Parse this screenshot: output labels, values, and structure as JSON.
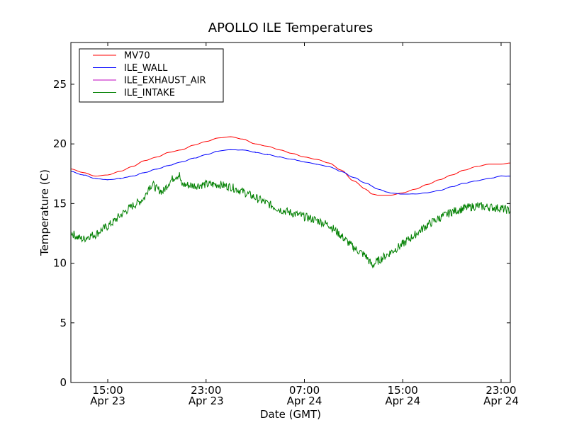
{
  "chart_data": {
    "type": "line",
    "title": "APOLLO ILE Temperatures",
    "xlabel": "Date (GMT)",
    "ylabel": "Temperature (C)",
    "x_unit": "hours on the date axis",
    "xlim": [
      "Apr 23 12:00",
      "Apr 24 23:45"
    ],
    "ylim": [
      0,
      28.5
    ],
    "y_ticks": [
      0,
      5,
      10,
      15,
      20,
      25
    ],
    "x_ticks": [
      {
        "time": "15:00",
        "date": "Apr 23",
        "at": "Apr 23 15:00"
      },
      {
        "time": "23:00",
        "date": "Apr 23",
        "at": "Apr 23 23:00"
      },
      {
        "time": "07:00",
        "date": "Apr 24",
        "at": "Apr 24 07:00"
      },
      {
        "time": "15:00",
        "date": "Apr 24",
        "at": "Apr 24 15:00"
      },
      {
        "time": "23:00",
        "date": "Apr 24",
        "at": "Apr 24 23:00"
      }
    ],
    "grid": false,
    "legend_position": "top-left",
    "series": [
      {
        "name": "MV70",
        "color": "#ff0000",
        "points": [
          [
            "Apr 23 12:00",
            17.9
          ],
          [
            "Apr 23 13:00",
            17.6
          ],
          [
            "Apr 23 14:00",
            17.3
          ],
          [
            "Apr 23 15:00",
            17.4
          ],
          [
            "Apr 23 16:00",
            17.7
          ],
          [
            "Apr 23 17:00",
            18.1
          ],
          [
            "Apr 23 18:00",
            18.6
          ],
          [
            "Apr 23 19:00",
            18.9
          ],
          [
            "Apr 23 20:00",
            19.3
          ],
          [
            "Apr 23 21:00",
            19.5
          ],
          [
            "Apr 23 22:00",
            19.9
          ],
          [
            "Apr 23 23:00",
            20.2
          ],
          [
            "Apr 24 00:00",
            20.5
          ],
          [
            "Apr 24 01:00",
            20.6
          ],
          [
            "Apr 24 02:00",
            20.4
          ],
          [
            "Apr 24 03:00",
            20.0
          ],
          [
            "Apr 24 04:00",
            19.8
          ],
          [
            "Apr 24 05:00",
            19.5
          ],
          [
            "Apr 24 06:00",
            19.2
          ],
          [
            "Apr 24 07:00",
            18.9
          ],
          [
            "Apr 24 08:00",
            18.7
          ],
          [
            "Apr 24 09:00",
            18.4
          ],
          [
            "Apr 24 10:00",
            17.8
          ],
          [
            "Apr 24 11:00",
            16.9
          ],
          [
            "Apr 24 12:00",
            16.2
          ],
          [
            "Apr 24 12:30",
            15.8
          ],
          [
            "Apr 24 13:00",
            15.7
          ],
          [
            "Apr 24 14:00",
            15.7
          ],
          [
            "Apr 24 15:00",
            15.9
          ],
          [
            "Apr 24 16:00",
            16.2
          ],
          [
            "Apr 24 17:00",
            16.6
          ],
          [
            "Apr 24 18:00",
            17.0
          ],
          [
            "Apr 24 19:00",
            17.4
          ],
          [
            "Apr 24 20:00",
            17.8
          ],
          [
            "Apr 24 21:00",
            18.1
          ],
          [
            "Apr 24 22:00",
            18.3
          ],
          [
            "Apr 24 23:00",
            18.3
          ],
          [
            "Apr 24 23:45",
            18.4
          ]
        ]
      },
      {
        "name": "ILE_WALL",
        "color": "#0000ff",
        "points": [
          [
            "Apr 23 12:00",
            17.7
          ],
          [
            "Apr 23 13:00",
            17.4
          ],
          [
            "Apr 23 14:00",
            17.1
          ],
          [
            "Apr 23 15:00",
            17.0
          ],
          [
            "Apr 23 16:00",
            17.1
          ],
          [
            "Apr 23 17:00",
            17.3
          ],
          [
            "Apr 23 18:00",
            17.6
          ],
          [
            "Apr 23 19:00",
            17.9
          ],
          [
            "Apr 23 20:00",
            18.2
          ],
          [
            "Apr 23 21:00",
            18.5
          ],
          [
            "Apr 23 22:00",
            18.8
          ],
          [
            "Apr 23 23:00",
            19.1
          ],
          [
            "Apr 24 00:00",
            19.4
          ],
          [
            "Apr 24 01:00",
            19.5
          ],
          [
            "Apr 24 02:00",
            19.5
          ],
          [
            "Apr 24 03:00",
            19.3
          ],
          [
            "Apr 24 04:00",
            19.1
          ],
          [
            "Apr 24 05:00",
            18.9
          ],
          [
            "Apr 24 06:00",
            18.7
          ],
          [
            "Apr 24 07:00",
            18.5
          ],
          [
            "Apr 24 08:00",
            18.3
          ],
          [
            "Apr 24 09:00",
            18.1
          ],
          [
            "Apr 24 10:00",
            17.7
          ],
          [
            "Apr 24 11:00",
            17.2
          ],
          [
            "Apr 24 12:00",
            16.7
          ],
          [
            "Apr 24 13:00",
            16.2
          ],
          [
            "Apr 24 14:00",
            15.9
          ],
          [
            "Apr 24 15:00",
            15.8
          ],
          [
            "Apr 24 16:00",
            15.8
          ],
          [
            "Apr 24 17:00",
            15.9
          ],
          [
            "Apr 24 18:00",
            16.1
          ],
          [
            "Apr 24 19:00",
            16.4
          ],
          [
            "Apr 24 20:00",
            16.7
          ],
          [
            "Apr 24 21:00",
            16.9
          ],
          [
            "Apr 24 22:00",
            17.1
          ],
          [
            "Apr 24 23:00",
            17.3
          ],
          [
            "Apr 24 23:45",
            17.3
          ]
        ]
      },
      {
        "name": "ILE_EXHAUST_AIR",
        "color": "#bf00bf",
        "points": []
      },
      {
        "name": "ILE_INTAKE",
        "color": "#008000",
        "points": [
          [
            "Apr 23 12:00",
            12.6
          ],
          [
            "Apr 23 12:30",
            12.2
          ],
          [
            "Apr 23 13:00",
            12.0
          ],
          [
            "Apr 23 13:30",
            12.3
          ],
          [
            "Apr 23 14:00",
            12.4
          ],
          [
            "Apr 23 14:30",
            12.8
          ],
          [
            "Apr 23 15:00",
            13.1
          ],
          [
            "Apr 23 15:30",
            13.5
          ],
          [
            "Apr 23 16:00",
            14.0
          ],
          [
            "Apr 23 16:30",
            14.4
          ],
          [
            "Apr 23 17:00",
            14.8
          ],
          [
            "Apr 23 17:30",
            15.1
          ],
          [
            "Apr 23 18:00",
            15.5
          ],
          [
            "Apr 23 18:20",
            16.4
          ],
          [
            "Apr 23 18:40",
            16.6
          ],
          [
            "Apr 23 19:00",
            16.2
          ],
          [
            "Apr 23 19:30",
            16.0
          ],
          [
            "Apr 23 20:00",
            16.8
          ],
          [
            "Apr 23 20:30",
            17.3
          ],
          [
            "Apr 23 20:50",
            17.4
          ],
          [
            "Apr 23 21:00",
            16.6
          ],
          [
            "Apr 23 22:00",
            16.5
          ],
          [
            "Apr 23 23:00",
            16.6
          ],
          [
            "Apr 24 00:00",
            16.6
          ],
          [
            "Apr 24 01:00",
            16.4
          ],
          [
            "Apr 24 02:00",
            16.0
          ],
          [
            "Apr 24 03:00",
            15.5
          ],
          [
            "Apr 24 04:00",
            15.0
          ],
          [
            "Apr 24 05:00",
            14.5
          ],
          [
            "Apr 24 06:00",
            14.2
          ],
          [
            "Apr 24 07:00",
            13.9
          ],
          [
            "Apr 24 08:00",
            13.6
          ],
          [
            "Apr 24 09:00",
            13.2
          ],
          [
            "Apr 24 10:00",
            12.3
          ],
          [
            "Apr 24 11:00",
            11.3
          ],
          [
            "Apr 24 12:00",
            10.6
          ],
          [
            "Apr 24 12:30",
            9.8
          ],
          [
            "Apr 24 13:00",
            10.2
          ],
          [
            "Apr 24 14:00",
            10.9
          ],
          [
            "Apr 24 15:00",
            11.6
          ],
          [
            "Apr 24 16:00",
            12.4
          ],
          [
            "Apr 24 17:00",
            13.2
          ],
          [
            "Apr 24 18:00",
            13.8
          ],
          [
            "Apr 24 19:00",
            14.3
          ],
          [
            "Apr 24 20:00",
            14.6
          ],
          [
            "Apr 24 21:00",
            14.8
          ],
          [
            "Apr 24 22:00",
            14.7
          ],
          [
            "Apr 24 23:00",
            14.6
          ],
          [
            "Apr 24 23:45",
            14.4
          ]
        ]
      }
    ]
  }
}
